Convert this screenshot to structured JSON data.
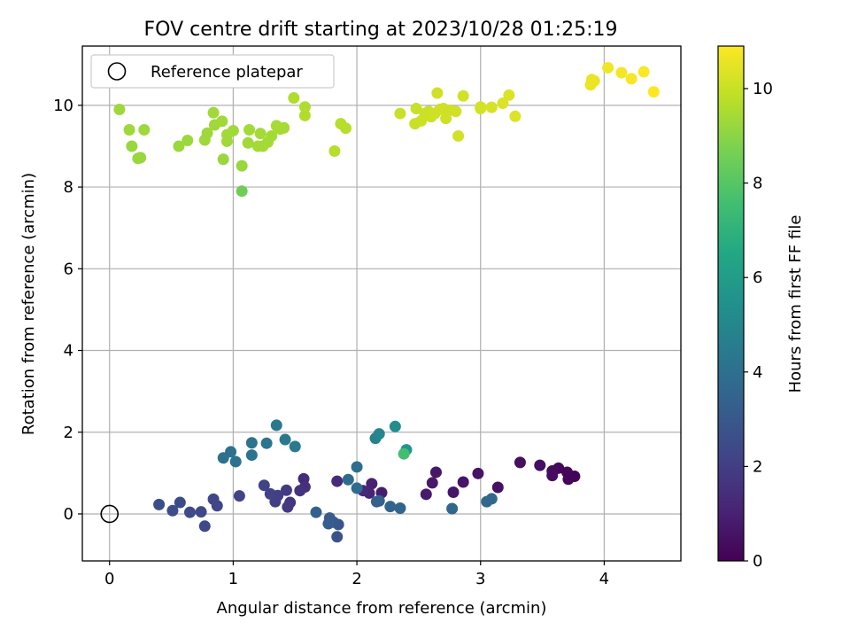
{
  "chart_data": {
    "type": "scatter",
    "title": "FOV centre drift starting at 2023/10/28 01:25:19",
    "xlabel": "Angular distance from reference (arcmin)",
    "ylabel": "Rotation from reference (arcmin)",
    "xlim": [
      -0.22,
      4.62
    ],
    "ylim": [
      -1.15,
      11.45
    ],
    "xticks": [
      0,
      1,
      2,
      3,
      4
    ],
    "yticks": [
      0,
      2,
      4,
      6,
      8,
      10
    ],
    "grid": true,
    "legend": {
      "position": "top-left",
      "entries": [
        "Reference platepar"
      ]
    },
    "reference_point": {
      "x": 0,
      "y": 0,
      "label": "Reference platepar"
    },
    "colorbar": {
      "label": "Hours from first FF file",
      "colormap": "viridis",
      "range": [
        0,
        10.9
      ],
      "ticks": [
        0,
        2,
        4,
        6,
        8,
        10
      ]
    },
    "points": [
      {
        "x": 3.76,
        "y": 0.92,
        "c": 0.1
      },
      {
        "x": 3.71,
        "y": 0.85,
        "c": 0.15
      },
      {
        "x": 3.7,
        "y": 1.02,
        "c": 0.2
      },
      {
        "x": 3.63,
        "y": 1.12,
        "c": 0.25
      },
      {
        "x": 3.58,
        "y": 1.05,
        "c": 0.3
      },
      {
        "x": 3.58,
        "y": 0.94,
        "c": 0.35
      },
      {
        "x": 3.48,
        "y": 1.19,
        "c": 0.4
      },
      {
        "x": 3.32,
        "y": 1.26,
        "c": 0.45
      },
      {
        "x": 3.14,
        "y": 0.65,
        "c": 0.5
      },
      {
        "x": 2.98,
        "y": 0.99,
        "c": 0.55
      },
      {
        "x": 2.86,
        "y": 0.78,
        "c": 0.6
      },
      {
        "x": 2.78,
        "y": 0.53,
        "c": 0.65
      },
      {
        "x": 2.64,
        "y": 1.02,
        "c": 0.7
      },
      {
        "x": 2.61,
        "y": 0.76,
        "c": 0.75
      },
      {
        "x": 2.56,
        "y": 0.48,
        "c": 0.8
      },
      {
        "x": 2.2,
        "y": 0.52,
        "c": 0.9
      },
      {
        "x": 2.12,
        "y": 0.74,
        "c": 1.0
      },
      {
        "x": 2.1,
        "y": 0.51,
        "c": 1.1
      },
      {
        "x": 2.05,
        "y": 0.57,
        "c": 1.2
      },
      {
        "x": 1.84,
        "y": 0.8,
        "c": 1.3
      },
      {
        "x": 1.57,
        "y": 0.86,
        "c": 1.4
      },
      {
        "x": 1.58,
        "y": 0.66,
        "c": 1.5
      },
      {
        "x": 1.54,
        "y": 0.57,
        "c": 1.6
      },
      {
        "x": 1.46,
        "y": 0.28,
        "c": 1.7
      },
      {
        "x": 1.44,
        "y": 0.17,
        "c": 1.8
      },
      {
        "x": 1.43,
        "y": 0.58,
        "c": 1.9
      },
      {
        "x": 1.36,
        "y": 0.45,
        "c": 2.0
      },
      {
        "x": 1.34,
        "y": 0.3,
        "c": 2.05
      },
      {
        "x": 1.3,
        "y": 0.49,
        "c": 2.1
      },
      {
        "x": 1.25,
        "y": 0.7,
        "c": 2.15
      },
      {
        "x": 1.05,
        "y": 0.44,
        "c": 2.2
      },
      {
        "x": 0.87,
        "y": 0.2,
        "c": 2.25
      },
      {
        "x": 0.84,
        "y": 0.36,
        "c": 2.3
      },
      {
        "x": 0.77,
        "y": -0.3,
        "c": 2.35
      },
      {
        "x": 0.74,
        "y": 0.05,
        "c": 2.4
      },
      {
        "x": 0.65,
        "y": 0.04,
        "c": 2.45
      },
      {
        "x": 0.57,
        "y": 0.28,
        "c": 2.5
      },
      {
        "x": 0.51,
        "y": 0.08,
        "c": 2.55
      },
      {
        "x": 0.4,
        "y": 0.23,
        "c": 2.6
      },
      {
        "x": 1.84,
        "y": -0.56,
        "c": 2.8
      },
      {
        "x": 1.85,
        "y": -0.26,
        "c": 2.9
      },
      {
        "x": 1.81,
        "y": -0.2,
        "c": 3.0
      },
      {
        "x": 1.78,
        "y": -0.1,
        "c": 3.1
      },
      {
        "x": 1.77,
        "y": -0.24,
        "c": 3.2
      },
      {
        "x": 1.67,
        "y": 0.04,
        "c": 3.3
      },
      {
        "x": 2.16,
        "y": 0.3,
        "c": 3.4
      },
      {
        "x": 2.18,
        "y": 0.32,
        "c": 3.45
      },
      {
        "x": 2.27,
        "y": 0.18,
        "c": 3.5
      },
      {
        "x": 2.35,
        "y": 0.14,
        "c": 3.55
      },
      {
        "x": 2.77,
        "y": 0.13,
        "c": 3.6
      },
      {
        "x": 3.05,
        "y": 0.3,
        "c": 3.65
      },
      {
        "x": 3.09,
        "y": 0.37,
        "c": 3.7
      },
      {
        "x": 1.93,
        "y": 0.84,
        "c": 3.8
      },
      {
        "x": 2.0,
        "y": 0.63,
        "c": 3.85
      },
      {
        "x": 2.0,
        "y": 1.15,
        "c": 3.9
      },
      {
        "x": 0.92,
        "y": 1.37,
        "c": 4.0
      },
      {
        "x": 0.98,
        "y": 1.52,
        "c": 4.05
      },
      {
        "x": 1.02,
        "y": 1.28,
        "c": 4.1
      },
      {
        "x": 1.15,
        "y": 1.44,
        "c": 4.15
      },
      {
        "x": 1.15,
        "y": 1.74,
        "c": 4.2
      },
      {
        "x": 1.27,
        "y": 1.73,
        "c": 4.25
      },
      {
        "x": 1.35,
        "y": 2.17,
        "c": 4.3
      },
      {
        "x": 1.42,
        "y": 1.82,
        "c": 4.35
      },
      {
        "x": 1.5,
        "y": 1.65,
        "c": 4.4
      },
      {
        "x": 2.15,
        "y": 1.85,
        "c": 4.8
      },
      {
        "x": 2.18,
        "y": 1.96,
        "c": 5.0
      },
      {
        "x": 2.31,
        "y": 2.14,
        "c": 5.3
      },
      {
        "x": 2.4,
        "y": 1.57,
        "c": 5.6
      },
      {
        "x": 2.38,
        "y": 1.47,
        "c": 7.6
      },
      {
        "x": 1.07,
        "y": 7.9,
        "c": 8.5
      },
      {
        "x": 1.07,
        "y": 8.52,
        "c": 9.2
      },
      {
        "x": 0.92,
        "y": 8.68,
        "c": 9.2
      },
      {
        "x": 0.25,
        "y": 8.72,
        "c": 9.2
      },
      {
        "x": 0.23,
        "y": 8.7,
        "c": 9.2
      },
      {
        "x": 0.18,
        "y": 9.0,
        "c": 9.2
      },
      {
        "x": 0.56,
        "y": 9.0,
        "c": 9.25
      },
      {
        "x": 0.63,
        "y": 9.14,
        "c": 9.25
      },
      {
        "x": 0.16,
        "y": 9.4,
        "c": 9.3
      },
      {
        "x": 0.28,
        "y": 9.4,
        "c": 9.3
      },
      {
        "x": 0.08,
        "y": 9.9,
        "c": 9.3
      },
      {
        "x": 0.77,
        "y": 9.15,
        "c": 9.3
      },
      {
        "x": 0.79,
        "y": 9.32,
        "c": 9.3
      },
      {
        "x": 0.85,
        "y": 9.52,
        "c": 9.3
      },
      {
        "x": 0.84,
        "y": 9.82,
        "c": 9.35
      },
      {
        "x": 0.91,
        "y": 9.61,
        "c": 9.35
      },
      {
        "x": 0.95,
        "y": 9.28,
        "c": 9.35
      },
      {
        "x": 0.95,
        "y": 9.12,
        "c": 9.35
      },
      {
        "x": 1.0,
        "y": 9.38,
        "c": 9.35
      },
      {
        "x": 1.12,
        "y": 9.08,
        "c": 9.35
      },
      {
        "x": 1.13,
        "y": 9.4,
        "c": 9.4
      },
      {
        "x": 1.2,
        "y": 9.0,
        "c": 9.4
      },
      {
        "x": 1.22,
        "y": 9.31,
        "c": 9.4
      },
      {
        "x": 1.24,
        "y": 9.0,
        "c": 9.4
      },
      {
        "x": 1.28,
        "y": 9.1,
        "c": 9.4
      },
      {
        "x": 1.31,
        "y": 9.25,
        "c": 9.4
      },
      {
        "x": 1.35,
        "y": 9.5,
        "c": 9.45
      },
      {
        "x": 1.38,
        "y": 9.42,
        "c": 9.45
      },
      {
        "x": 1.41,
        "y": 9.45,
        "c": 9.45
      },
      {
        "x": 1.49,
        "y": 10.18,
        "c": 9.6
      },
      {
        "x": 1.58,
        "y": 9.96,
        "c": 9.6
      },
      {
        "x": 1.58,
        "y": 9.75,
        "c": 9.6
      },
      {
        "x": 1.82,
        "y": 8.88,
        "c": 9.7
      },
      {
        "x": 1.87,
        "y": 9.55,
        "c": 9.7
      },
      {
        "x": 1.91,
        "y": 9.44,
        "c": 9.7
      },
      {
        "x": 2.35,
        "y": 9.8,
        "c": 10.0
      },
      {
        "x": 2.47,
        "y": 9.55,
        "c": 10.0
      },
      {
        "x": 2.48,
        "y": 9.92,
        "c": 10.0
      },
      {
        "x": 2.52,
        "y": 9.62,
        "c": 10.05
      },
      {
        "x": 2.55,
        "y": 9.8,
        "c": 10.05
      },
      {
        "x": 2.58,
        "y": 9.85,
        "c": 10.05
      },
      {
        "x": 2.6,
        "y": 9.72,
        "c": 10.05
      },
      {
        "x": 2.63,
        "y": 9.8,
        "c": 10.1
      },
      {
        "x": 2.65,
        "y": 10.3,
        "c": 10.1
      },
      {
        "x": 2.67,
        "y": 9.9,
        "c": 10.1
      },
      {
        "x": 2.7,
        "y": 9.92,
        "c": 10.1
      },
      {
        "x": 2.72,
        "y": 9.68,
        "c": 10.1
      },
      {
        "x": 2.75,
        "y": 9.88,
        "c": 10.1
      },
      {
        "x": 2.8,
        "y": 9.85,
        "c": 10.15
      },
      {
        "x": 2.82,
        "y": 9.25,
        "c": 10.15
      },
      {
        "x": 2.86,
        "y": 10.23,
        "c": 10.15
      },
      {
        "x": 3.0,
        "y": 9.96,
        "c": 10.2
      },
      {
        "x": 3.0,
        "y": 9.92,
        "c": 10.2
      },
      {
        "x": 3.09,
        "y": 9.95,
        "c": 10.25
      },
      {
        "x": 3.18,
        "y": 10.05,
        "c": 10.3
      },
      {
        "x": 3.23,
        "y": 10.25,
        "c": 10.3
      },
      {
        "x": 3.28,
        "y": 9.73,
        "c": 10.35
      },
      {
        "x": 3.89,
        "y": 10.5,
        "c": 10.6
      },
      {
        "x": 3.9,
        "y": 10.63,
        "c": 10.6
      },
      {
        "x": 3.92,
        "y": 10.6,
        "c": 10.6
      },
      {
        "x": 4.03,
        "y": 10.92,
        "c": 10.7
      },
      {
        "x": 4.14,
        "y": 10.8,
        "c": 10.75
      },
      {
        "x": 4.22,
        "y": 10.65,
        "c": 10.8
      },
      {
        "x": 4.32,
        "y": 10.82,
        "c": 10.85
      },
      {
        "x": 4.4,
        "y": 10.33,
        "c": 10.9
      }
    ]
  }
}
